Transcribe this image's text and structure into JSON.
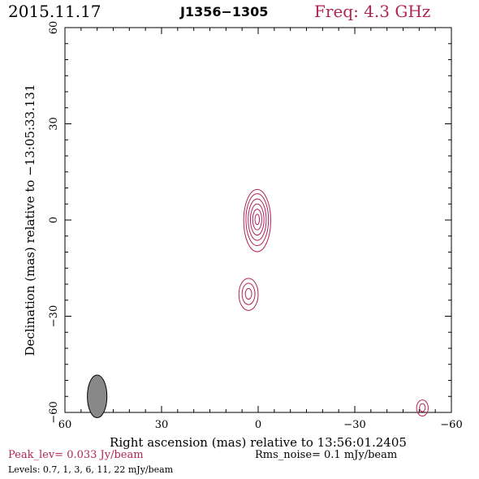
{
  "header": {
    "date": "2015.11.17",
    "source": "J1356−1305",
    "freq": "Freq: 4.3 GHz"
  },
  "footer": {
    "peak": "Peak_lev=  0.033 Jy/beam",
    "rms": "Rms_noise=  0.1 mJy/beam",
    "levels": "Levels: 0.7,   1,   3,   6,  11,  22 mJy/beam"
  },
  "colors": {
    "contour": "#b0245a",
    "beam": "#888888"
  },
  "chart_data": {
    "type": "contour",
    "xlabel": "Right ascension (mas) relative to 13:56:01.2405",
    "ylabel": "Declination (mas) relative to −13:05:33.131",
    "xlim": [
      60,
      -60
    ],
    "ylim": [
      -60,
      60
    ],
    "xticks": [
      60,
      30,
      0,
      -30,
      -60
    ],
    "yticks": [
      -60,
      -30,
      0,
      30,
      60
    ],
    "xtick_labels": [
      "60",
      "30",
      "0",
      "−30",
      "−60"
    ],
    "ytick_labels": [
      "−60",
      "−30",
      "0",
      "30",
      "60"
    ],
    "levels_mjy_per_beam": [
      0.7,
      1,
      3,
      6,
      11,
      22
    ],
    "components": [
      {
        "x": 0.3,
        "y": 0.2,
        "a": 4.2,
        "b": 9.7,
        "levels": 6
      },
      {
        "x": 3.0,
        "y": -23.0,
        "a": 3.0,
        "b": 5.0,
        "levels": 3
      },
      {
        "x": -51.0,
        "y": -58.5,
        "a": 1.8,
        "b": 2.5,
        "levels": 2
      }
    ],
    "beam": {
      "x": 50.0,
      "y": -55.0,
      "major": 7.0,
      "minor": 3.2,
      "pa_deg": 0
    }
  }
}
